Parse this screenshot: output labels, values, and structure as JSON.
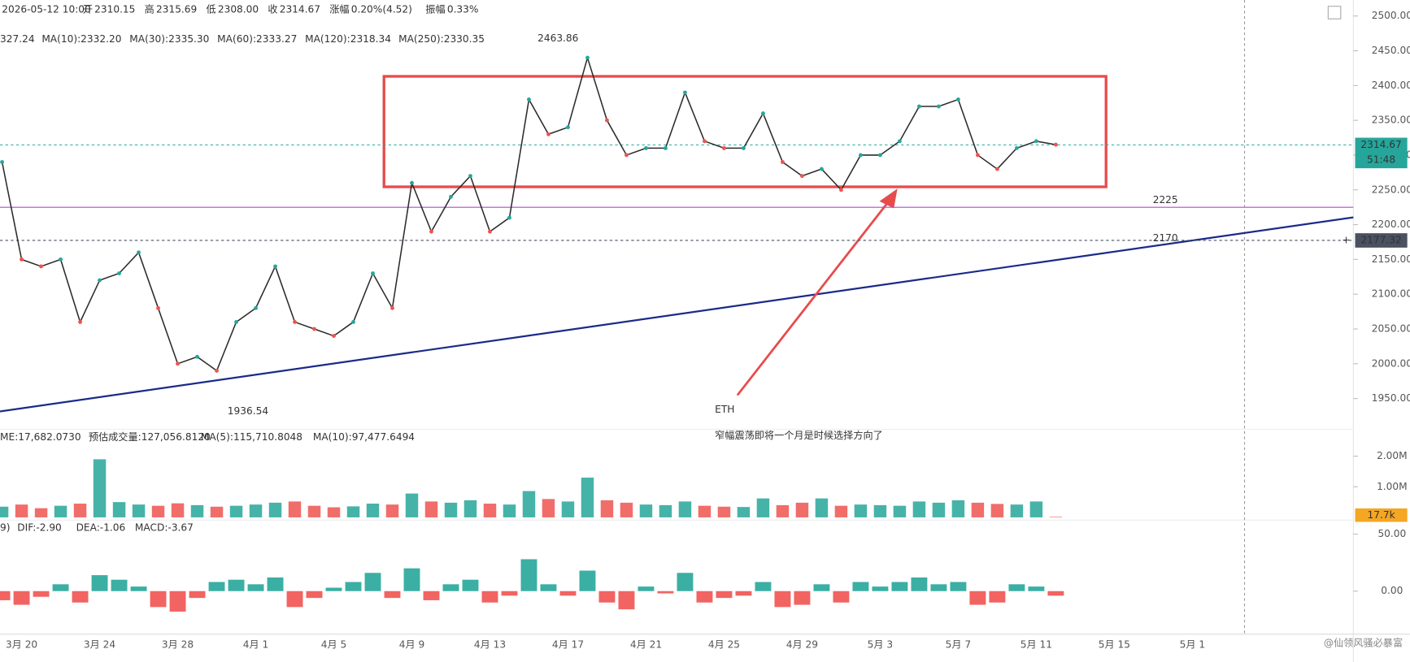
{
  "header": {
    "time": "2026-05-12 10:00",
    "items": [
      {
        "label": "开",
        "value": "2310.15"
      },
      {
        "label": "高",
        "value": "2315.69"
      },
      {
        "label": "低",
        "value": "2308.00"
      },
      {
        "label": "收",
        "value": "2314.67"
      },
      {
        "label": "涨幅",
        "value": "0.20%(4.52)"
      },
      {
        "label": "振幅",
        "value": "0.33%"
      }
    ],
    "ma_legend": [
      {
        "text": "327.24",
        "color": "#2a6fb8"
      },
      {
        "text": "MA(10):2332.20",
        "color": "#c2185b"
      },
      {
        "text": "MA(30):2335.30",
        "color": "#e573a8"
      },
      {
        "text": "MA(60):2333.27",
        "color": "#4cc3b0"
      },
      {
        "text": "MA(120):2318.34",
        "color": "#c8782c"
      },
      {
        "text": "MA(250):2330.35",
        "color": "#b5462a"
      }
    ]
  },
  "chart_data": [
    {
      "type": "line",
      "categories": [
        null,
        "3月 20",
        null,
        null,
        null,
        "3月 24",
        null,
        null,
        null,
        "3月 28",
        null,
        null,
        null,
        "4月 1",
        null,
        null,
        null,
        "4月 5",
        null,
        null,
        null,
        "4月 9",
        null,
        null,
        null,
        "4月 13",
        null,
        null,
        null,
        "4月 17",
        null,
        null,
        null,
        "4月 21",
        null,
        null,
        null,
        "4月 25",
        null,
        null,
        null,
        "4月 29",
        null,
        null,
        null,
        "5月 3",
        null,
        null,
        null,
        "5月 7",
        null,
        null,
        null,
        "5月 11",
        null,
        null,
        null,
        "5月 15",
        null,
        null,
        null,
        "5月 1"
      ],
      "values": [
        2290,
        2150,
        2140,
        2150,
        2060,
        2120,
        2130,
        2160,
        2080,
        2000,
        2010,
        1990,
        2060,
        2080,
        2140,
        2060,
        2050,
        2040,
        2060,
        2130,
        2080,
        2260,
        2190,
        2240,
        2270,
        2190,
        2210,
        2380,
        2330,
        2340,
        2440,
        2350,
        2300,
        2310,
        2310,
        2390,
        2320,
        2310,
        2310,
        2360,
        2290,
        2270,
        2280,
        2250,
        2300,
        2300,
        2320,
        2370,
        2370,
        2380,
        2300,
        2280,
        2310,
        2320,
        2315,
        null,
        null,
        null,
        null,
        null,
        null,
        null
      ],
      "color": "#2b2b2b",
      "ylim": [
        1916,
        2523
      ],
      "yticks": [
        {
          "value": 1950,
          "label": "1950.00"
        },
        {
          "value": 2000,
          "label": "2000.00"
        },
        {
          "value": 2050,
          "label": "2050.00"
        },
        {
          "value": 2100,
          "label": "2100.00"
        },
        {
          "value": 2150,
          "label": "2150.00"
        },
        {
          "value": 2200,
          "label": "2200.00"
        },
        {
          "value": 2250,
          "label": "2250.00"
        },
        {
          "value": 2300,
          "label": "2300.00"
        },
        {
          "value": 2350,
          "label": "2350.00"
        },
        {
          "value": 2400,
          "label": "2400.00"
        },
        {
          "value": 2450,
          "label": "2450.00"
        },
        {
          "value": 2500,
          "label": "2500.00"
        }
      ],
      "extremes": [
        {
          "index": 30,
          "value": 2463.86,
          "side": "high"
        },
        {
          "index": 11,
          "value": 1936.54,
          "side": "low"
        }
      ],
      "hlines": [
        {
          "value": 2225,
          "color": "#b04ad0"
        },
        {
          "value": 2177.32,
          "label": "2177.32",
          "color": "#4a5160"
        },
        {
          "value": 2314.67,
          "label": "2314.67",
          "timer": "51:48",
          "color": "#26a69a"
        }
      ],
      "level_labels": [
        2225,
        2170
      ],
      "note": [
        "ETH",
        "窄幅震荡即将一个月是时候选择方向了"
      ]
    },
    {
      "type": "volume",
      "legend": [
        "ME:17,682.0730",
        "预估成交量:127,056.8120",
        "MA(5):115,710.8048",
        "MA(10):97,477.6494"
      ],
      "values": [
        350000,
        420000,
        300000,
        380000,
        450000,
        1900000,
        500000,
        420000,
        380000,
        460000,
        400000,
        350000,
        380000,
        420000,
        480000,
        520000,
        380000,
        330000,
        360000,
        450000,
        420000,
        780000,
        520000,
        480000,
        560000,
        450000,
        420000,
        860000,
        600000,
        520000,
        1300000,
        560000,
        480000,
        420000,
        400000,
        520000,
        380000,
        350000,
        340000,
        620000,
        400000,
        480000,
        620000,
        380000,
        420000,
        400000,
        380000,
        520000,
        480000,
        560000,
        480000,
        440000,
        420000,
        520000,
        17700,
        null,
        null,
        null,
        null,
        null,
        null,
        null
      ],
      "current_label": "17.7k",
      "up_color": "#26a69a",
      "down_color": "#ef5350",
      "ylim": [
        0,
        2760000
      ],
      "yticks": [
        {
          "value": 1000000,
          "label": "1.00M"
        },
        {
          "value": 2000000,
          "label": "2.00M"
        }
      ]
    },
    {
      "type": "macd",
      "legend": [
        "9)",
        "DIF:-2.90",
        "DEA:-1.06",
        "MACD:-3.67"
      ],
      "values": [
        -8,
        -12,
        -5,
        6,
        -10,
        14,
        10,
        4,
        -14,
        -18,
        -6,
        8,
        10,
        6,
        12,
        -14,
        -6,
        3,
        8,
        16,
        -6,
        20,
        -8,
        6,
        10,
        -10,
        -4,
        28,
        6,
        -4,
        18,
        -10,
        -16,
        4,
        -2,
        16,
        -10,
        -6,
        -4,
        8,
        -14,
        -12,
        6,
        -10,
        8,
        4,
        8,
        12,
        6,
        8,
        -12,
        -10,
        6,
        4,
        -4,
        null,
        null,
        null,
        null,
        null,
        null,
        null
      ],
      "up_color": "#26a69a",
      "down_color": "#ef5350",
      "ylim": [
        -37,
        60
      ],
      "yticks": [
        {
          "value": 0,
          "label": "0.00"
        },
        {
          "value": 50,
          "label": "50.00"
        }
      ]
    }
  ],
  "watermark": "@仙领风骚必暴富"
}
